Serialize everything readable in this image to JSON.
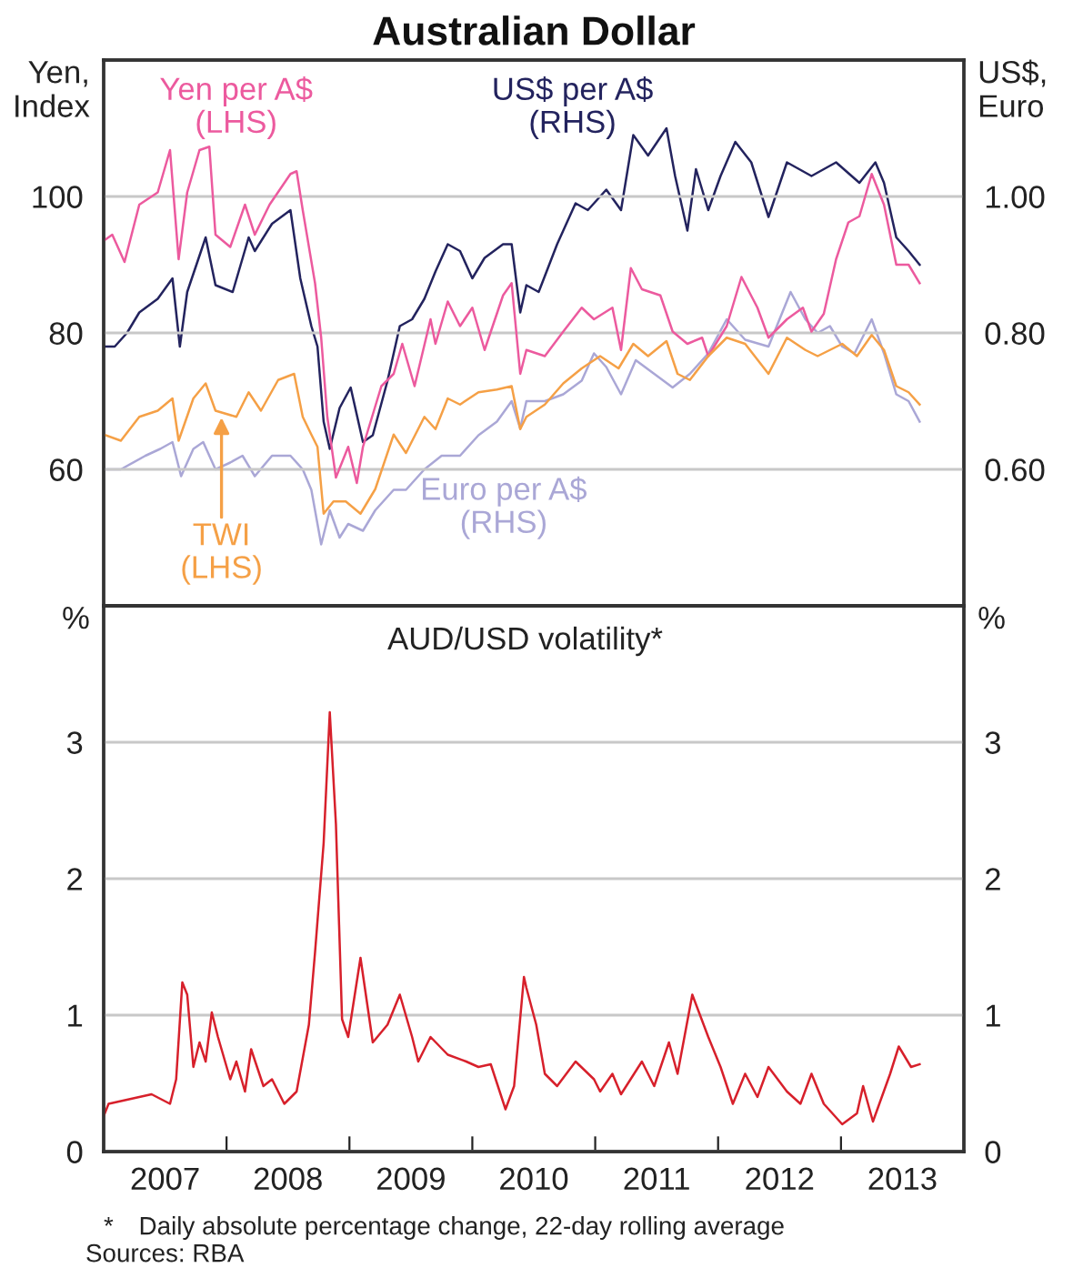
{
  "chart_data": [
    {
      "type": "line",
      "title": "Australian Dollar",
      "ylabel": "Yen,\nIndex",
      "y2label": "US$,\nEuro",
      "xlim": [
        2007,
        2014
      ],
      "ylim": [
        40,
        120
      ],
      "yticks": [
        60,
        80,
        100
      ],
      "y2lim": [
        0.4,
        1.2
      ],
      "y2ticks": [
        {
          "value": 0.6,
          "label": "0.60"
        },
        {
          "value": 0.8,
          "label": "0.80"
        },
        {
          "value": 1.0,
          "label": "1.00"
        }
      ],
      "grid": "y",
      "tick_labels": "y",
      "line_style": "solid",
      "series": [
        {
          "name": "Yen per A$\n(LHS)",
          "color": "#ec5a9e",
          "x": [
            2007.0,
            2007.07,
            2007.17,
            2007.29,
            2007.44,
            2007.54,
            2007.61,
            2007.68,
            2007.78,
            2007.86,
            2007.91,
            2008.03,
            2008.15,
            2008.23,
            2008.35,
            2008.52,
            2008.57,
            2008.62,
            2008.72,
            2008.77,
            2008.82,
            2008.89,
            2008.99,
            2009.06,
            2009.11,
            2009.26,
            2009.36,
            2009.43,
            2009.53,
            2009.66,
            2009.7,
            2009.8,
            2009.9,
            2010.0,
            2010.1,
            2010.25,
            2010.32,
            2010.39,
            2010.44,
            2010.59,
            2010.74,
            2010.89,
            2010.99,
            2011.14,
            2011.21,
            2011.29,
            2011.38,
            2011.53,
            2011.63,
            2011.75,
            2011.87,
            2011.92,
            2012.07,
            2012.19,
            2012.32,
            2012.41,
            2012.56,
            2012.69,
            2012.76,
            2012.86,
            2012.96,
            2013.06,
            2013.15,
            2013.25,
            2013.35,
            2013.45,
            2013.55,
            2013.64
          ],
          "values": [
            93.5,
            94.4,
            90.4,
            98.8,
            100.6,
            106.8,
            90.8,
            100.6,
            106.8,
            107.3,
            94.4,
            92.6,
            98.8,
            94.4,
            98.8,
            103.3,
            103.7,
            98,
            87.3,
            79.3,
            67.7,
            58.8,
            63.3,
            58,
            63.3,
            72.2,
            74,
            78.4,
            72.2,
            82,
            78.4,
            84.6,
            81,
            83.7,
            77.5,
            85.5,
            87.3,
            74,
            77.5,
            76.6,
            80.2,
            83.7,
            82,
            83.7,
            77.5,
            89.5,
            86.4,
            85.5,
            80.2,
            78.4,
            79.3,
            76.6,
            81,
            88.2,
            83.7,
            79.3,
            82,
            83.7,
            80.2,
            82.8,
            90.8,
            96.2,
            97.1,
            103.3,
            98.8,
            90,
            90,
            87.3
          ]
        },
        {
          "name": "US$ per A$\n(RHS)",
          "color": "#23235e",
          "axis": "y2",
          "x": [
            2007.0,
            2007.09,
            2007.19,
            2007.29,
            2007.44,
            2007.56,
            2007.62,
            2007.68,
            2007.83,
            2007.91,
            2008.05,
            2008.18,
            2008.23,
            2008.37,
            2008.52,
            2008.6,
            2008.69,
            2008.74,
            2008.79,
            2008.84,
            2008.92,
            2009.01,
            2009.11,
            2009.19,
            2009.31,
            2009.41,
            2009.51,
            2009.61,
            2009.7,
            2009.8,
            2009.9,
            2010.0,
            2010.1,
            2010.25,
            2010.32,
            2010.39,
            2010.44,
            2010.54,
            2010.69,
            2010.84,
            2010.94,
            2011.09,
            2011.21,
            2011.31,
            2011.43,
            2011.58,
            2011.65,
            2011.75,
            2011.82,
            2011.92,
            2012.02,
            2012.14,
            2012.27,
            2012.41,
            2012.56,
            2012.76,
            2012.96,
            2013.15,
            2013.28,
            2013.35,
            2013.45,
            2013.55,
            2013.64
          ],
          "values": [
            0.78,
            0.78,
            0.8,
            0.83,
            0.85,
            0.88,
            0.78,
            0.86,
            0.94,
            0.87,
            0.86,
            0.94,
            0.92,
            0.96,
            0.98,
            0.88,
            0.81,
            0.78,
            0.67,
            0.63,
            0.69,
            0.72,
            0.64,
            0.65,
            0.73,
            0.81,
            0.82,
            0.85,
            0.89,
            0.93,
            0.92,
            0.88,
            0.91,
            0.93,
            0.93,
            0.83,
            0.87,
            0.86,
            0.93,
            0.99,
            0.98,
            1.01,
            0.98,
            1.09,
            1.06,
            1.1,
            1.03,
            0.95,
            1.04,
            0.98,
            1.03,
            1.08,
            1.05,
            0.97,
            1.05,
            1.03,
            1.05,
            1.02,
            1.05,
            1.02,
            0.94,
            0.92,
            0.9
          ]
        },
        {
          "name": "TWI\n(LHS)",
          "color": "#f5a046",
          "x": [
            2007.0,
            2007.14,
            2007.29,
            2007.44,
            2007.56,
            2007.61,
            2007.73,
            2007.83,
            2007.91,
            2008.08,
            2008.18,
            2008.28,
            2008.42,
            2008.55,
            2008.62,
            2008.69,
            2008.74,
            2008.79,
            2008.87,
            2008.97,
            2009.09,
            2009.21,
            2009.36,
            2009.46,
            2009.61,
            2009.7,
            2009.8,
            2009.9,
            2010.05,
            2010.2,
            2010.32,
            2010.39,
            2010.44,
            2010.59,
            2010.74,
            2010.89,
            2011.04,
            2011.19,
            2011.31,
            2011.43,
            2011.58,
            2011.67,
            2011.77,
            2011.92,
            2012.07,
            2012.22,
            2012.41,
            2012.56,
            2012.71,
            2012.81,
            2013.01,
            2013.13,
            2013.25,
            2013.35,
            2013.45,
            2013.55,
            2013.64
          ],
          "values": [
            65.1,
            64.2,
            67.7,
            68.6,
            70.4,
            64.2,
            70.4,
            72.6,
            68.6,
            67.7,
            71.3,
            68.6,
            73.1,
            74,
            67.7,
            65.1,
            63.3,
            53.5,
            55.3,
            55.3,
            53.5,
            57.1,
            65.1,
            62.4,
            67.7,
            65.9,
            70.4,
            69.5,
            71.3,
            71.7,
            72.2,
            65.9,
            67.7,
            69.5,
            72.6,
            74.8,
            76.6,
            74.8,
            78.4,
            76.6,
            78.8,
            74,
            73.1,
            76.6,
            79.3,
            78.4,
            74,
            79.3,
            77.5,
            76.6,
            78.4,
            76.6,
            79.7,
            77.5,
            72.2,
            71.3,
            69.5
          ]
        },
        {
          "name": "Euro per A$\n(RHS)",
          "color": "#aaa7d6",
          "axis": "y2",
          "x": [
            2007.0,
            2007.14,
            2007.34,
            2007.46,
            2007.56,
            2007.63,
            2007.73,
            2007.81,
            2007.91,
            2008.03,
            2008.13,
            2008.23,
            2008.37,
            2008.52,
            2008.62,
            2008.69,
            2008.77,
            2008.84,
            2008.92,
            2008.99,
            2009.11,
            2009.21,
            2009.36,
            2009.46,
            2009.61,
            2009.75,
            2009.9,
            2010.05,
            2010.2,
            2010.32,
            2010.39,
            2010.44,
            2010.59,
            2010.74,
            2010.89,
            2010.99,
            2011.09,
            2011.21,
            2011.33,
            2011.48,
            2011.63,
            2011.77,
            2011.92,
            2012.07,
            2012.22,
            2012.41,
            2012.59,
            2012.71,
            2012.81,
            2012.91,
            2013.01,
            2013.11,
            2013.25,
            2013.35,
            2013.45,
            2013.55,
            2013.64
          ],
          "values": [
            0.6,
            0.6,
            0.62,
            0.63,
            0.64,
            0.59,
            0.63,
            0.64,
            0.6,
            0.61,
            0.62,
            0.59,
            0.62,
            0.62,
            0.6,
            0.57,
            0.49,
            0.54,
            0.5,
            0.52,
            0.51,
            0.54,
            0.57,
            0.57,
            0.6,
            0.62,
            0.62,
            0.65,
            0.67,
            0.7,
            0.66,
            0.7,
            0.7,
            0.71,
            0.73,
            0.77,
            0.75,
            0.71,
            0.76,
            0.74,
            0.72,
            0.74,
            0.77,
            0.82,
            0.79,
            0.78,
            0.86,
            0.82,
            0.8,
            0.81,
            0.78,
            0.77,
            0.82,
            0.77,
            0.71,
            0.7,
            0.67
          ]
        }
      ]
    },
    {
      "type": "line",
      "title": "AUD/USD volatility*",
      "ylabel": "%",
      "y2label": "%",
      "xlim": [
        2007,
        2014
      ],
      "xticks": [
        {
          "value": 2007.5,
          "label": "2007"
        },
        {
          "value": 2008,
          "label": null
        },
        {
          "value": 2008.5,
          "label": "2008"
        },
        {
          "value": 2009,
          "label": null
        },
        {
          "value": 2009.5,
          "label": "2009"
        },
        {
          "value": 2010,
          "label": null
        },
        {
          "value": 2010.5,
          "label": "2010"
        },
        {
          "value": 2011,
          "label": null
        },
        {
          "value": 2011.5,
          "label": "2011"
        },
        {
          "value": 2012,
          "label": null
        },
        {
          "value": 2012.5,
          "label": "2012"
        },
        {
          "value": 2013,
          "label": null
        },
        {
          "value": 2013.5,
          "label": "2013"
        }
      ],
      "ylim": [
        0,
        4
      ],
      "yticks": [
        0,
        1,
        2,
        3
      ],
      "y2lim": [
        0,
        4
      ],
      "y2ticks": [
        0,
        1,
        2,
        3
      ],
      "grid": "y",
      "line_style": "solid",
      "annotations": [
        "* Daily absolute percentage change, 22-day rolling average",
        "Sources: RBA"
      ],
      "series": [
        {
          "color": "#d7202b",
          "x": [
            2007.0,
            2007.04,
            2007.39,
            2007.54,
            2007.59,
            2007.64,
            2007.68,
            2007.73,
            2007.78,
            2007.83,
            2007.88,
            2007.93,
            2008.03,
            2008.08,
            2008.15,
            2008.2,
            2008.3,
            2008.37,
            2008.47,
            2008.57,
            2008.67,
            2008.72,
            2008.79,
            2008.84,
            2008.89,
            2008.94,
            2008.99,
            2009.09,
            2009.19,
            2009.31,
            2009.41,
            2009.51,
            2009.56,
            2009.66,
            2009.8,
            2009.95,
            2010.05,
            2010.15,
            2010.27,
            2010.34,
            2010.42,
            2010.44,
            2010.52,
            2010.59,
            2010.69,
            2010.84,
            2010.99,
            2011.04,
            2011.14,
            2011.21,
            2011.38,
            2011.48,
            2011.6,
            2011.67,
            2011.79,
            2011.92,
            2012.02,
            2012.12,
            2012.22,
            2012.32,
            2012.41,
            2012.56,
            2012.67,
            2012.76,
            2012.86,
            2013.01,
            2013.13,
            2013.18,
            2013.26,
            2013.4,
            2013.47,
            2013.57,
            2013.64
          ],
          "values": [
            0.26,
            0.35,
            0.42,
            0.35,
            0.53,
            1.24,
            1.15,
            0.62,
            0.8,
            0.66,
            1.02,
            0.84,
            0.53,
            0.66,
            0.44,
            0.75,
            0.48,
            0.53,
            0.35,
            0.44,
            0.93,
            1.46,
            2.26,
            3.22,
            2.4,
            0.97,
            0.84,
            1.42,
            0.8,
            0.93,
            1.15,
            0.84,
            0.66,
            0.84,
            0.71,
            0.66,
            0.62,
            0.64,
            0.31,
            0.48,
            1.28,
            1.2,
            0.93,
            0.57,
            0.48,
            0.66,
            0.53,
            0.44,
            0.57,
            0.42,
            0.66,
            0.48,
            0.8,
            0.57,
            1.15,
            0.84,
            0.62,
            0.35,
            0.57,
            0.4,
            0.62,
            0.44,
            0.35,
            0.57,
            0.35,
            0.2,
            0.28,
            0.48,
            0.22,
            0.57,
            0.77,
            0.62,
            0.64
          ]
        }
      ]
    }
  ]
}
